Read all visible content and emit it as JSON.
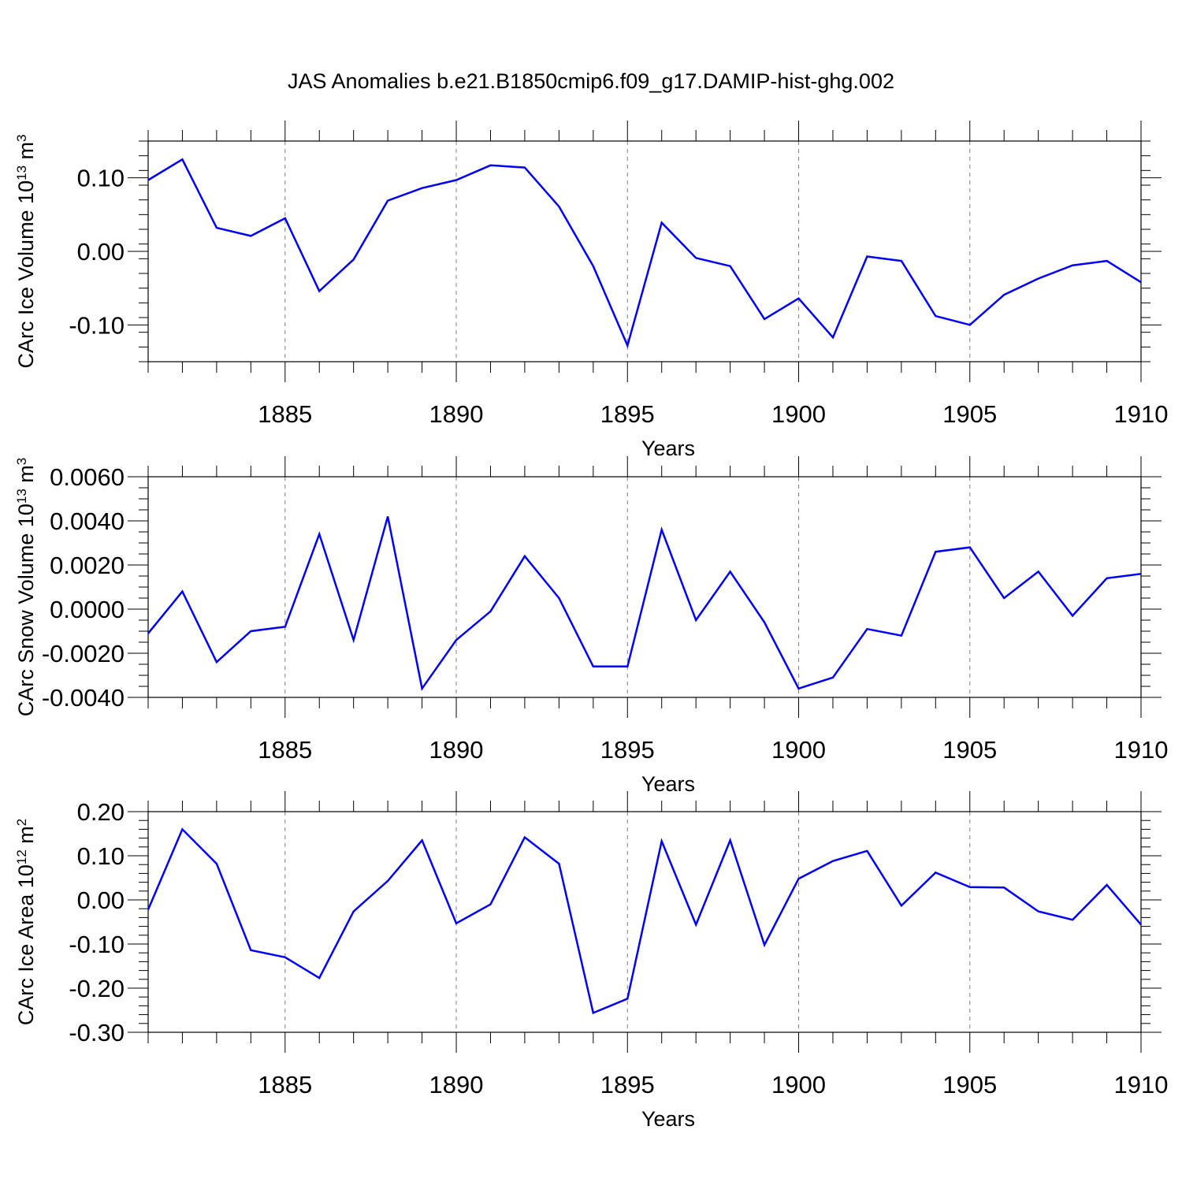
{
  "title": "JAS Anomalies b.e21.B1850cmip6.f09_g17.DAMIP-hist-ghg.002",
  "colors": {
    "line": "#0000ff",
    "axis": "#000000",
    "grid": "#808080"
  },
  "chart_data": [
    {
      "type": "line",
      "title": "",
      "xlabel": "Years",
      "ylabel": "CArc Ice Volume 10",
      "ylabel_exp": "13",
      "ylabel_unit": " m",
      "ylabel_unit_exp": "3",
      "xlim": [
        1881,
        1910
      ],
      "ylim": [
        -0.15,
        0.15
      ],
      "yticks": [
        -0.1,
        0.0,
        0.1
      ],
      "ytick_labels": [
        "-0.10",
        "0.00",
        "0.10"
      ],
      "xticks": [
        1885,
        1890,
        1895,
        1900,
        1905,
        1910
      ],
      "xtick_labels": [
        "1885",
        "1890",
        "1895",
        "1900",
        "1905",
        "1910"
      ],
      "x": [
        1881,
        1882,
        1883,
        1884,
        1885,
        1886,
        1887,
        1888,
        1889,
        1890,
        1891,
        1892,
        1893,
        1894,
        1895,
        1896,
        1897,
        1898,
        1899,
        1900,
        1901,
        1902,
        1903,
        1904,
        1905,
        1906,
        1907,
        1908,
        1909,
        1910
      ],
      "series": [
        {
          "name": "CArc Ice Volume",
          "values": [
            0.097,
            0.125,
            0.032,
            0.021,
            0.045,
            -0.054,
            -0.011,
            0.069,
            0.086,
            0.097,
            0.117,
            0.114,
            0.061,
            -0.02,
            -0.128,
            0.039,
            -0.009,
            -0.02,
            -0.092,
            -0.064,
            -0.117,
            -0.007,
            -0.013,
            -0.088,
            -0.1,
            -0.059,
            -0.037,
            -0.019,
            -0.013,
            -0.042
          ]
        }
      ]
    },
    {
      "type": "line",
      "title": "",
      "xlabel": "Years",
      "ylabel": "CArc Snow Volume 10",
      "ylabel_exp": "13",
      "ylabel_unit": " m",
      "ylabel_unit_exp": "3",
      "xlim": [
        1881,
        1910
      ],
      "ylim": [
        -0.004,
        0.006
      ],
      "yticks": [
        -0.004,
        -0.002,
        0.0,
        0.002,
        0.004,
        0.006
      ],
      "ytick_labels": [
        "-0.0040",
        "-0.0020",
        "0.0000",
        "0.0020",
        "0.0040",
        "0.0060"
      ],
      "xticks": [
        1885,
        1890,
        1895,
        1900,
        1905,
        1910
      ],
      "xtick_labels": [
        "1885",
        "1890",
        "1895",
        "1900",
        "1905",
        "1910"
      ],
      "x": [
        1881,
        1882,
        1883,
        1884,
        1885,
        1886,
        1887,
        1888,
        1889,
        1890,
        1891,
        1892,
        1893,
        1894,
        1895,
        1896,
        1897,
        1898,
        1899,
        1900,
        1901,
        1902,
        1903,
        1904,
        1905,
        1906,
        1907,
        1908,
        1909,
        1910
      ],
      "series": [
        {
          "name": "CArc Snow Volume",
          "values": [
            -0.0011,
            0.0008,
            -0.0024,
            -0.001,
            -0.0008,
            0.0034,
            -0.0014,
            0.0042,
            -0.0036,
            -0.0014,
            -0.0001,
            0.0024,
            0.0005,
            -0.0026,
            -0.0026,
            0.0036,
            -0.0005,
            0.0017,
            -0.0006,
            -0.0036,
            -0.0031,
            -0.0009,
            -0.0012,
            0.0026,
            0.0028,
            0.0005,
            0.0017,
            -0.0003,
            0.0014,
            0.0016
          ]
        }
      ]
    },
    {
      "type": "line",
      "title": "",
      "xlabel": "Years",
      "ylabel": "CArc Ice Area 10",
      "ylabel_exp": "12",
      "ylabel_unit": " m",
      "ylabel_unit_exp": "2",
      "xlim": [
        1881,
        1910
      ],
      "ylim": [
        -0.3,
        0.2
      ],
      "yticks": [
        -0.3,
        -0.2,
        -0.1,
        0.0,
        0.1,
        0.2
      ],
      "ytick_labels": [
        "-0.30",
        "-0.20",
        "-0.10",
        "0.00",
        "0.10",
        "0.20"
      ],
      "xticks": [
        1885,
        1890,
        1895,
        1900,
        1905,
        1910
      ],
      "xtick_labels": [
        "1885",
        "1890",
        "1895",
        "1900",
        "1905",
        "1910"
      ],
      "x": [
        1881,
        1882,
        1883,
        1884,
        1885,
        1886,
        1887,
        1888,
        1889,
        1890,
        1891,
        1892,
        1893,
        1894,
        1895,
        1896,
        1897,
        1898,
        1899,
        1900,
        1901,
        1902,
        1903,
        1904,
        1905,
        1906,
        1907,
        1908,
        1909,
        1910
      ],
      "series": [
        {
          "name": "CArc Ice Area",
          "values": [
            -0.022,
            0.16,
            0.082,
            -0.114,
            -0.13,
            -0.177,
            -0.026,
            0.043,
            0.135,
            -0.053,
            -0.01,
            0.142,
            0.082,
            -0.256,
            -0.224,
            0.133,
            -0.056,
            0.135,
            -0.102,
            0.048,
            0.088,
            0.111,
            -0.013,
            0.062,
            0.029,
            0.028,
            -0.026,
            -0.045,
            0.034,
            -0.056
          ]
        }
      ]
    }
  ]
}
